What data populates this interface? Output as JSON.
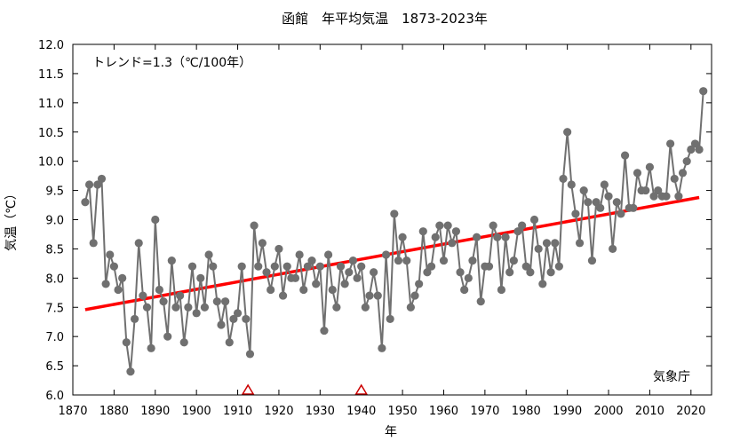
{
  "chart_data": {
    "type": "line",
    "title": "函館　年平均気温　1873-2023年",
    "xlabel": "年",
    "ylabel": "気温（℃）",
    "trend_label": "トレンド=1.3（℃/100年）",
    "source_label": "気象庁",
    "xlim": [
      1870,
      2025
    ],
    "ylim": [
      6.0,
      12.0
    ],
    "x_ticks": [
      1870,
      1880,
      1890,
      1900,
      1910,
      1920,
      1930,
      1940,
      1950,
      1960,
      1970,
      1980,
      1990,
      2000,
      2010,
      2020
    ],
    "y_ticks": [
      6.0,
      6.5,
      7.0,
      7.5,
      8.0,
      8.5,
      9.0,
      9.5,
      10.0,
      10.5,
      11.0,
      11.5,
      12.0
    ],
    "x_tick_labels": [
      "1870",
      "1880",
      "1890",
      "1900",
      "1910",
      "1920",
      "1930",
      "1940",
      "1950",
      "1960",
      "1970",
      "1980",
      "1990",
      "2000",
      "2010",
      "2020"
    ],
    "y_tick_labels": [
      "6.0",
      "6.5",
      "7.0",
      "7.5",
      "8.0",
      "8.5",
      "9.0",
      "9.5",
      "10.0",
      "10.5",
      "11.0",
      "11.5",
      "12.0"
    ],
    "series": [
      {
        "color": "#707070",
        "x": [
          1873,
          1874,
          1875,
          1876,
          1877,
          1878,
          1879,
          1880,
          1881,
          1882,
          1883,
          1884,
          1885,
          1886,
          1887,
          1888,
          1889,
          1890,
          1891,
          1892,
          1893,
          1894,
          1895,
          1896,
          1897,
          1898,
          1899,
          1900,
          1901,
          1902,
          1903,
          1904,
          1905,
          1906,
          1907,
          1908,
          1909,
          1910,
          1911,
          1912,
          1913,
          1914,
          1915,
          1916,
          1917,
          1918,
          1919,
          1920,
          1921,
          1922,
          1923,
          1924,
          1925,
          1926,
          1927,
          1928,
          1929,
          1930,
          1931,
          1932,
          1933,
          1934,
          1935,
          1936,
          1937,
          1938,
          1939,
          1940,
          1941,
          1942,
          1943,
          1944,
          1945,
          1946,
          1947,
          1948,
          1949,
          1950,
          1951,
          1952,
          1953,
          1954,
          1955,
          1956,
          1957,
          1958,
          1959,
          1960,
          1961,
          1962,
          1963,
          1964,
          1965,
          1966,
          1967,
          1968,
          1969,
          1970,
          1971,
          1972,
          1973,
          1974,
          1975,
          1976,
          1977,
          1978,
          1979,
          1980,
          1981,
          1982,
          1983,
          1984,
          1985,
          1986,
          1987,
          1988,
          1989,
          1990,
          1991,
          1992,
          1993,
          1994,
          1995,
          1996,
          1997,
          1998,
          1999,
          2000,
          2001,
          2002,
          2003,
          2004,
          2005,
          2006,
          2007,
          2008,
          2009,
          2010,
          2011,
          2012,
          2013,
          2014,
          2015,
          2016,
          2017,
          2018,
          2019,
          2020,
          2021,
          2022,
          2023
        ],
        "values": [
          9.3,
          9.6,
          8.6,
          9.6,
          9.7,
          7.9,
          8.4,
          8.2,
          7.8,
          8.0,
          6.9,
          6.4,
          7.3,
          8.6,
          7.7,
          7.5,
          6.8,
          9.0,
          7.8,
          7.6,
          7.0,
          8.3,
          7.5,
          7.7,
          6.9,
          7.5,
          8.2,
          7.4,
          8.0,
          7.5,
          8.4,
          8.2,
          7.6,
          7.2,
          7.6,
          6.9,
          7.3,
          7.4,
          8.2,
          7.3,
          6.7,
          8.9,
          8.2,
          8.6,
          8.1,
          7.8,
          8.2,
          8.5,
          7.7,
          8.2,
          8.0,
          8.0,
          8.4,
          7.8,
          8.2,
          8.3,
          7.9,
          8.2,
          7.1,
          8.4,
          7.8,
          7.5,
          8.2,
          7.9,
          8.1,
          8.3,
          8.0,
          8.2,
          7.5,
          7.7,
          8.1,
          7.7,
          6.8,
          8.4,
          7.3,
          9.1,
          8.3,
          8.7,
          8.3,
          7.5,
          7.7,
          7.9,
          8.8,
          8.1,
          8.2,
          8.7,
          8.9,
          8.3,
          8.9,
          8.6,
          8.8,
          8.1,
          7.8,
          8.0,
          8.3,
          8.7,
          7.6,
          8.2,
          8.2,
          8.9,
          8.7,
          7.8,
          8.7,
          8.1,
          8.3,
          8.8,
          8.9,
          8.2,
          8.1,
          9.0,
          8.5,
          7.9,
          8.6,
          8.1,
          8.6,
          8.2,
          9.7,
          10.5,
          9.6,
          9.1,
          8.6,
          9.5,
          9.3,
          8.3,
          9.3,
          9.2,
          9.6,
          9.4,
          8.5,
          9.3,
          9.1,
          10.1,
          9.2,
          9.2,
          9.8,
          9.5,
          9.5,
          9.9,
          9.4,
          9.5,
          9.4,
          9.4,
          10.3,
          9.7,
          9.4,
          9.8,
          10.0,
          10.2,
          10.3,
          10.2,
          11.2
        ]
      }
    ],
    "trend": {
      "color": "#ff0000",
      "x": [
        1873,
        2022
      ],
      "values": [
        7.46,
        9.38
      ]
    },
    "markers": {
      "type": "triangle",
      "color": "#cc0000",
      "x": [
        1912.5,
        1940
      ]
    }
  }
}
